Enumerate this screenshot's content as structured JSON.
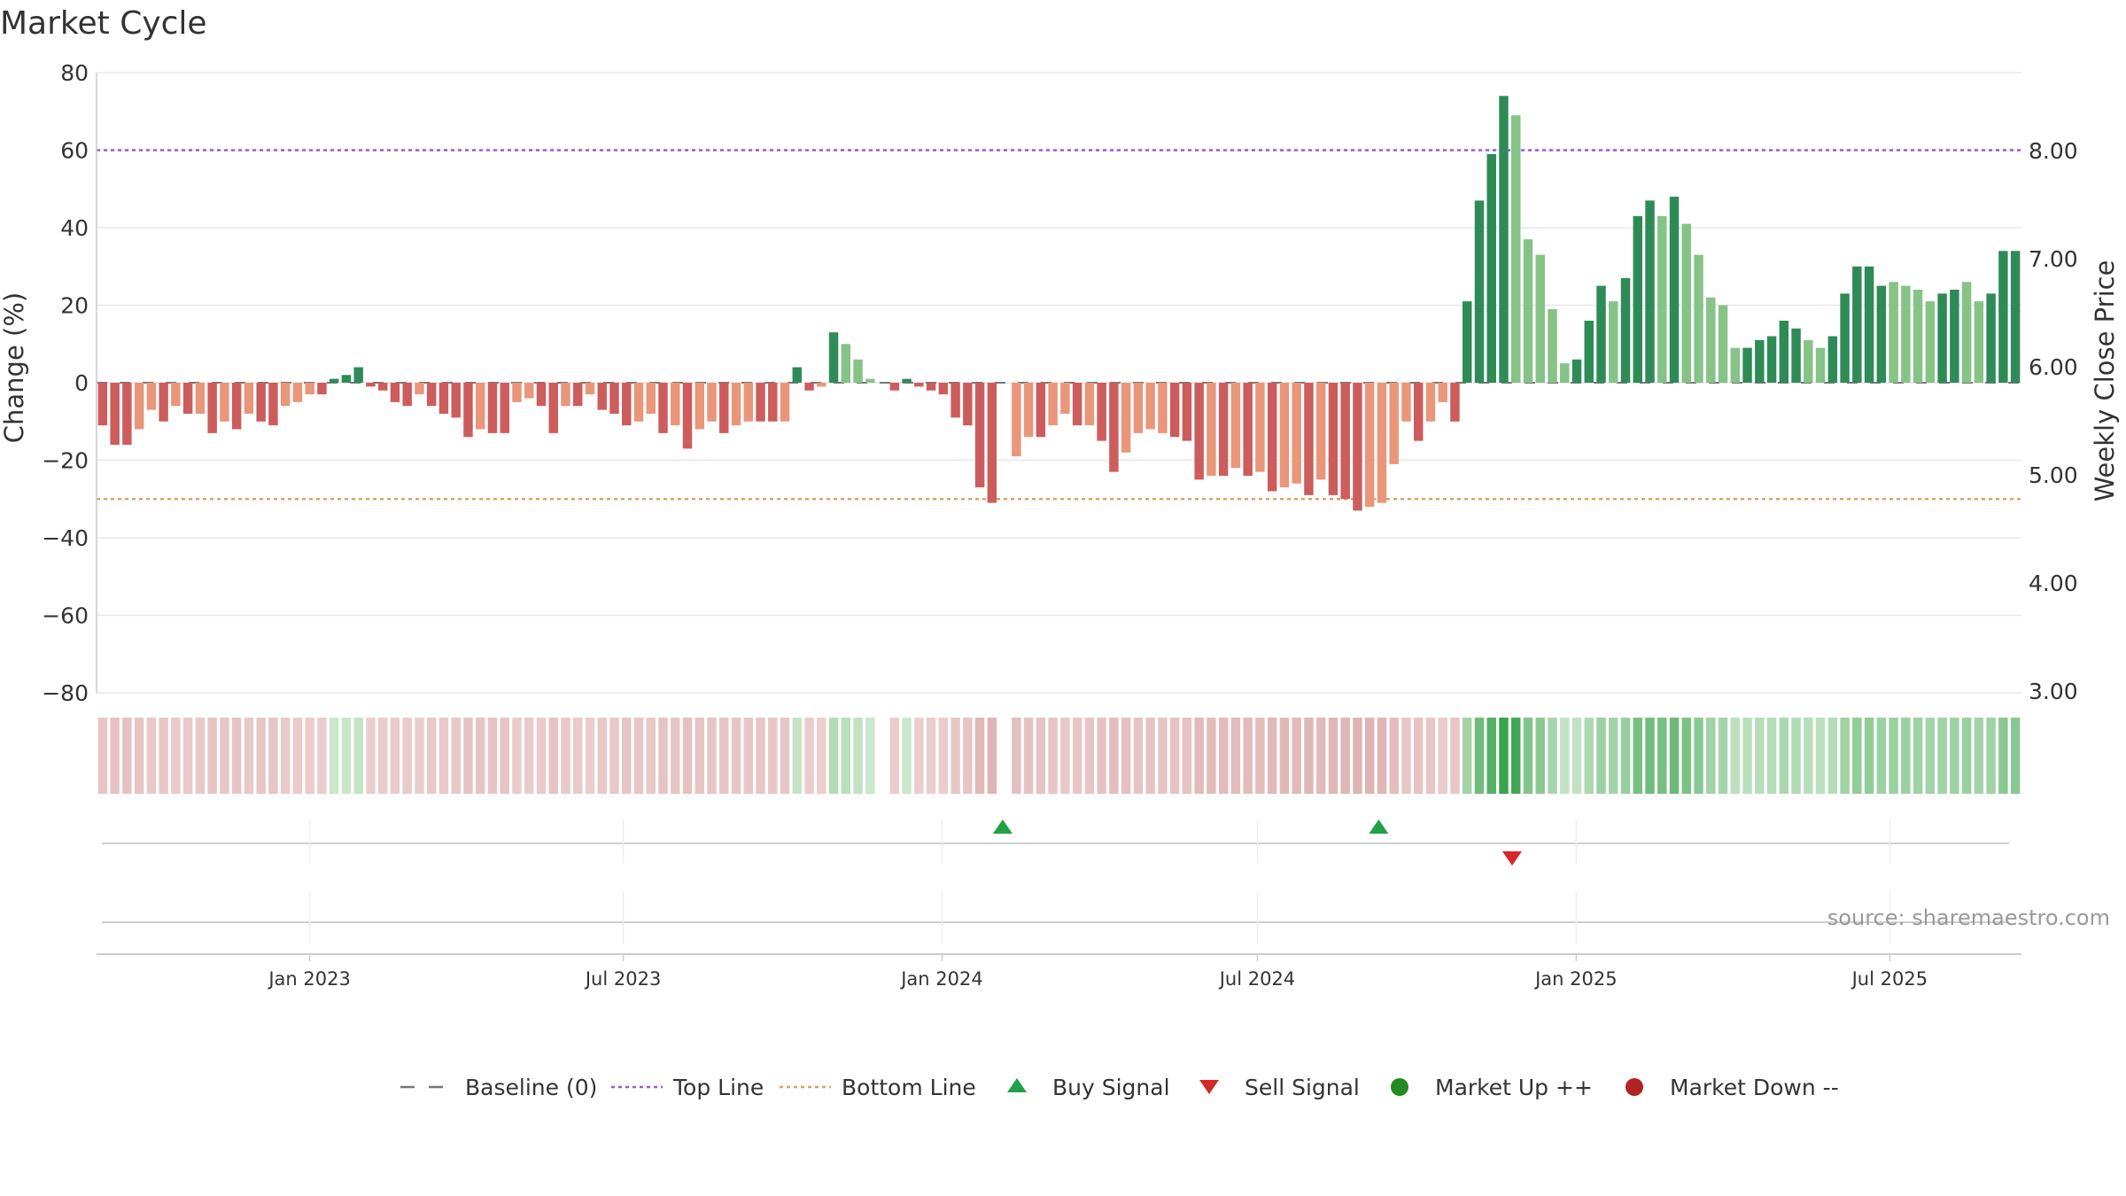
{
  "chart_data": {
    "type": "bar",
    "title": "Market Cycle",
    "ylabel": "Change (%)",
    "y2label": "Weekly Close Price",
    "ylim": [
      -80,
      80
    ],
    "y2lim": [
      3.0,
      8.7
    ],
    "yticks": [
      80,
      60,
      40,
      20,
      0,
      -20,
      -40,
      -60,
      -80
    ],
    "yticks_labels": [
      "80",
      "60",
      "40",
      "20",
      "0",
      "−20",
      "−40",
      "−60",
      "−80"
    ],
    "y2ticks": [
      8.0,
      7.0,
      6.0,
      5.0,
      4.0,
      3.0
    ],
    "y2ticks_labels": [
      "8.00",
      "7.00",
      "6.00",
      "5.00",
      "4.00",
      "3.00"
    ],
    "x_start": "2022-08-31",
    "x_end": "2025-09-15",
    "xticks": [
      {
        "date": "2023-01-01",
        "label": "Jan 2023"
      },
      {
        "date": "2023-07-01",
        "label": "Jul 2023"
      },
      {
        "date": "2024-01-01",
        "label": "Jan 2024"
      },
      {
        "date": "2024-07-01",
        "label": "Jul 2024"
      },
      {
        "date": "2025-01-01",
        "label": "Jan 2025"
      },
      {
        "date": "2025-07-01",
        "label": "Jul 2025"
      }
    ],
    "top_line": 60,
    "bottom_line": -30,
    "baseline": 0,
    "colors": {
      "up_strong": "#2e8b57",
      "up_weak": "#86c386",
      "down_strong": "#cd5c5c",
      "down_weak": "#e9967a",
      "top_line": "#9b59d0",
      "bottom_line": "#e0a060",
      "baseline": "#777777",
      "buy": "#22a045",
      "sell": "#d62728",
      "market_up": "#228b22",
      "market_down": "#b22222"
    },
    "weekly_change": [
      -11,
      -16,
      -16,
      -12,
      -7,
      -10,
      -6,
      -8,
      -8,
      -13,
      -10,
      -12,
      -8,
      -10,
      -11,
      -6,
      -5,
      -3,
      -3,
      1,
      2,
      4,
      -1,
      -2,
      -5,
      -6,
      -3,
      -6,
      -8,
      -9,
      -14,
      -12,
      -13,
      -13,
      -5,
      -4,
      -6,
      -13,
      -6,
      -6,
      -3,
      -7,
      -8,
      -11,
      -10,
      -8,
      -13,
      -11,
      -17,
      -12,
      -10,
      -13,
      -11,
      -10,
      -10,
      -10,
      -10,
      4,
      -2,
      -1,
      13,
      10,
      6,
      1,
      0,
      -2,
      1,
      -1,
      -2,
      -3,
      -9,
      -11,
      -27,
      -31,
      0,
      -19,
      -14,
      -14,
      -11,
      -8,
      -11,
      -11,
      -15,
      -23,
      -18,
      -13,
      -12,
      -13,
      -14,
      -15,
      -25,
      -24,
      -24,
      -22,
      -24,
      -23,
      -28,
      -27,
      -26,
      -29,
      -25,
      -29,
      -30,
      -33,
      -32,
      -31,
      -21,
      -10,
      -15,
      -10,
      -5,
      -10,
      21,
      47,
      59,
      74,
      69,
      37,
      33,
      19,
      5,
      6,
      16,
      25,
      21,
      27,
      43,
      47,
      43,
      48,
      41,
      33,
      22,
      20,
      9,
      9,
      11,
      12,
      16,
      14,
      11,
      9,
      12,
      23,
      30,
      30,
      25,
      26,
      25,
      24,
      21,
      23,
      24,
      26,
      21,
      23,
      34,
      34
    ],
    "bar_strength": [
      "s",
      "s",
      "s",
      "w",
      "w",
      "s",
      "w",
      "s",
      "w",
      "s",
      "w",
      "s",
      "w",
      "s",
      "s",
      "w",
      "w",
      "w",
      "s",
      "s",
      "s",
      "s",
      "s",
      "s",
      "s",
      "s",
      "w",
      "s",
      "s",
      "s",
      "s",
      "w",
      "s",
      "s",
      "w",
      "w",
      "s",
      "s",
      "w",
      "s",
      "w",
      "s",
      "s",
      "s",
      "w",
      "w",
      "s",
      "w",
      "s",
      "w",
      "w",
      "s",
      "w",
      "w",
      "s",
      "s",
      "w",
      "s",
      "s",
      "w",
      "s",
      "w",
      "w",
      "w",
      "s",
      "s",
      "s",
      "s",
      "s",
      "s",
      "s",
      "s",
      "s",
      "s",
      "s",
      "w",
      "w",
      "s",
      "w",
      "w",
      "s",
      "w",
      "s",
      "s",
      "w",
      "w",
      "w",
      "w",
      "s",
      "s",
      "s",
      "w",
      "s",
      "w",
      "s",
      "w",
      "s",
      "w",
      "w",
      "s",
      "w",
      "s",
      "s",
      "s",
      "w",
      "w",
      "w",
      "w",
      "s",
      "w",
      "w",
      "s",
      "s",
      "s",
      "s",
      "s",
      "w",
      "w",
      "w",
      "w",
      "w",
      "s",
      "s",
      "s",
      "w",
      "s",
      "s",
      "s",
      "w",
      "s",
      "w",
      "w",
      "w",
      "w",
      "w",
      "s",
      "s",
      "s",
      "s",
      "s",
      "w",
      "w",
      "s",
      "s",
      "s",
      "s",
      "s",
      "w",
      "w",
      "w",
      "w",
      "s",
      "s",
      "w",
      "w",
      "s",
      "s",
      "s",
      "s"
    ],
    "buy_signals": [
      "2024-02-05",
      "2024-09-09"
    ],
    "sell_signals": [
      "2024-11-25"
    ],
    "legend": [
      {
        "type": "dash",
        "label": "Baseline (0)"
      },
      {
        "type": "dot-purple",
        "label": "Top Line"
      },
      {
        "type": "dot-orange",
        "label": "Bottom Line"
      },
      {
        "type": "tri-up",
        "label": "Buy Signal"
      },
      {
        "type": "tri-down",
        "label": "Sell Signal"
      },
      {
        "type": "circle-green",
        "label": "Market Up ++"
      },
      {
        "type": "circle-red",
        "label": "Market Down --"
      }
    ],
    "source": "source: sharemaestro.com"
  }
}
